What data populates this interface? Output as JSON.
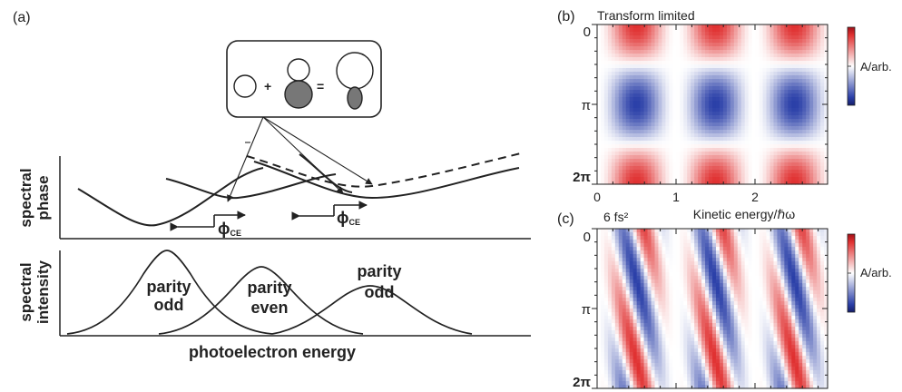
{
  "panel_a": {
    "label": "(a)",
    "ylabel_top": [
      "spectral",
      "phase"
    ],
    "ylabel_bottom": [
      "spectral",
      "intensity"
    ],
    "xlabel": "photoelectron energy",
    "peaks": [
      {
        "line1": "parity",
        "line2": "odd"
      },
      {
        "line1": "parity",
        "line2": "even"
      },
      {
        "line1": "parity",
        "line2": "odd"
      }
    ],
    "phi_label": "ϕ",
    "phi_subscript": "CE",
    "inset_plus": "+",
    "inset_equals": "="
  },
  "panel_b": {
    "label": "(b)",
    "title": "Transform limited",
    "yticks": [
      "0",
      "π",
      "2π"
    ],
    "xticks": [
      "0",
      "1",
      "2"
    ],
    "xlabel": "Kinetic energy/ℏω",
    "colorbar_label": "A/arb."
  },
  "panel_c": {
    "label": "(c)",
    "title": "6 fs²",
    "yticks": [
      "0",
      "π",
      "2π"
    ],
    "colorbar_label": "A/arb."
  },
  "colors": {
    "red": "#e03030",
    "blue": "#2a3fa8",
    "white": "#ffffff",
    "ink": "#222222",
    "inset_gray": "#777777"
  }
}
